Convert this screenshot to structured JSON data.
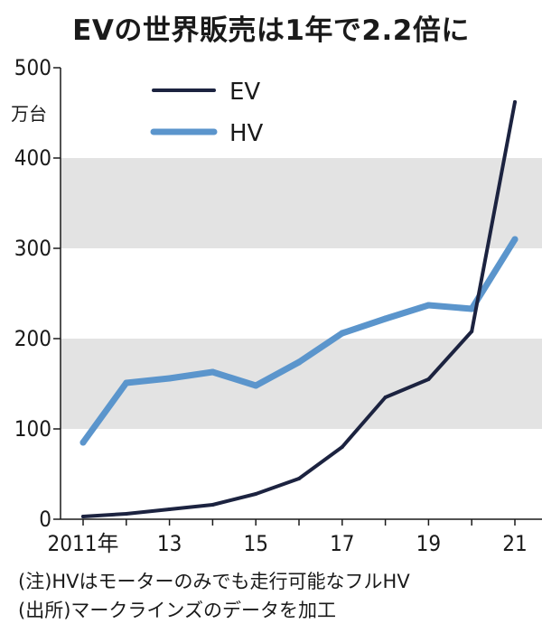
{
  "title": "EVの世界販売は1年で2.2倍に",
  "unit_label": "万台",
  "notes": {
    "note1": "(注)HVはモーターのみでも走行可能なフルHV",
    "note2": "(出所)マークラインズのデータを加工"
  },
  "colors": {
    "EV": "#1c2340",
    "HV": "#5b95cc",
    "band": "#e3e3e3"
  },
  "chart_data": {
    "type": "line",
    "x": [
      2011,
      2012,
      2013,
      2014,
      2015,
      2016,
      2017,
      2018,
      2019,
      2020,
      2021
    ],
    "x_tick_labels": [
      "2011年",
      "13",
      "15",
      "17",
      "19",
      "21"
    ],
    "x_tick_values": [
      2011,
      2013,
      2015,
      2017,
      2019,
      2021
    ],
    "y_tick_labels": [
      "0",
      "100",
      "200",
      "300",
      "400",
      "500"
    ],
    "ylim": [
      0,
      500
    ],
    "series": [
      {
        "name": "EV",
        "values": [
          3,
          6,
          11,
          16,
          28,
          45,
          80,
          135,
          155,
          208,
          462
        ]
      },
      {
        "name": "HV",
        "values": [
          85,
          151,
          156,
          163,
          148,
          174,
          206,
          222,
          237,
          233,
          310
        ]
      }
    ],
    "legend_position": "top-left",
    "grid": "alternating horizontal bands"
  }
}
